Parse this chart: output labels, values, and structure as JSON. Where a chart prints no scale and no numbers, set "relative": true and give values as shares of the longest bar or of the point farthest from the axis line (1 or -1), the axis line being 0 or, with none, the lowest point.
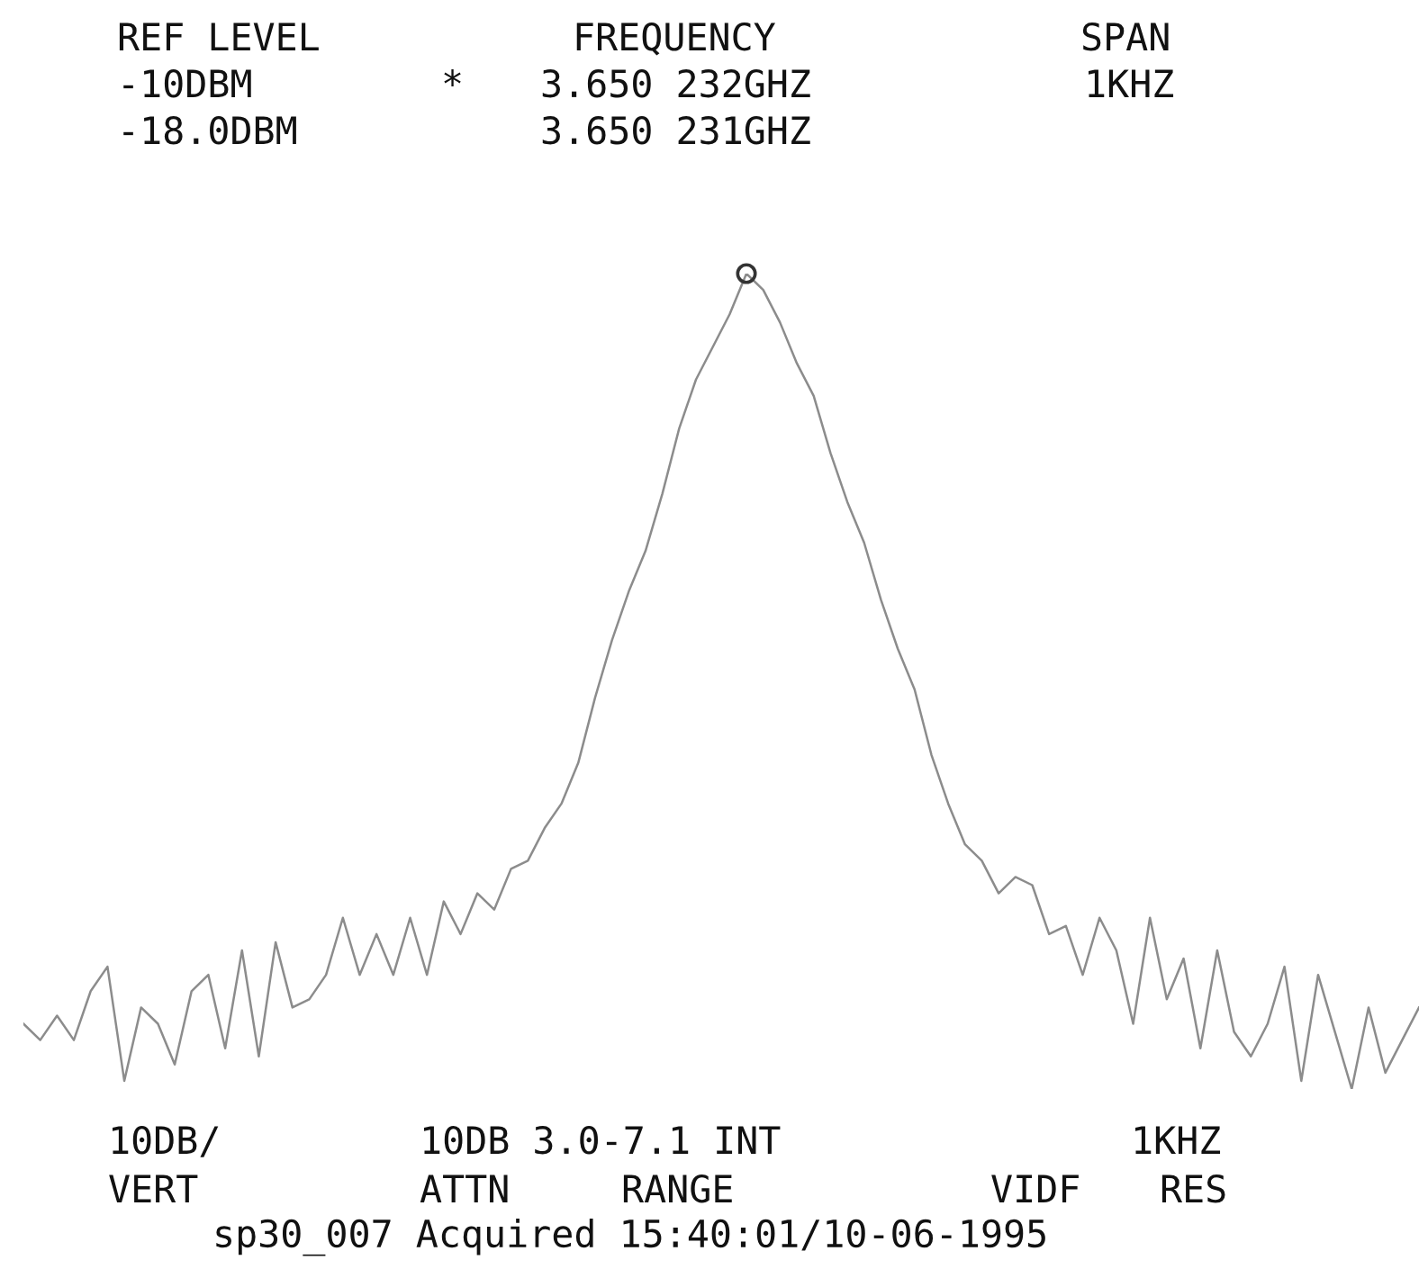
{
  "chart_data": {
    "type": "line",
    "relative": true,
    "categories": [
      null,
      null,
      null,
      null,
      null,
      null,
      null,
      null,
      null,
      null,
      null,
      null,
      null,
      null,
      null,
      null,
      null,
      null,
      null,
      null,
      null,
      null,
      null,
      null,
      null,
      null,
      null,
      null,
      null,
      null,
      null,
      null,
      null,
      null,
      null,
      null,
      null,
      null,
      null,
      null,
      null,
      null,
      null,
      null,
      null,
      null,
      null,
      null,
      null,
      null,
      null,
      null,
      null,
      null,
      null,
      null,
      null,
      null,
      null,
      null,
      null,
      null,
      null,
      null,
      null,
      null,
      null,
      null,
      null,
      null,
      null,
      null,
      null,
      null,
      null,
      null,
      null,
      null,
      null,
      null,
      null,
      null,
      null,
      null
    ],
    "series": [
      {
        "color": "#8c8c8c",
        "values": [
          0.08,
          0.06,
          0.09,
          0.06,
          0.12,
          0.15,
          0.01,
          0.1,
          0.08,
          0.03,
          0.12,
          0.14,
          0.05,
          0.17,
          0.04,
          0.18,
          0.1,
          0.11,
          0.14,
          0.21,
          0.14,
          0.19,
          0.14,
          0.21,
          0.14,
          0.23,
          0.19,
          0.24,
          0.22,
          0.27,
          0.28,
          0.32,
          0.35,
          0.4,
          0.48,
          0.55,
          0.61,
          0.66,
          0.73,
          0.81,
          0.87,
          0.91,
          0.95,
          1,
          0.98,
          0.94,
          0.89,
          0.85,
          0.78,
          0.72,
          0.67,
          0.6,
          0.54,
          0.49,
          0.41,
          0.35,
          0.3,
          0.28,
          0.24,
          0.26,
          0.25,
          0.19,
          0.2,
          0.14,
          0.21,
          0.17,
          0.08,
          0.21,
          0.11,
          0.16,
          0.05,
          0.17,
          0.07,
          0.04,
          0.08,
          0.15,
          0.01,
          0.14,
          0.07,
          0,
          0.1,
          0.02,
          0.06,
          0.1
        ]
      }
    ],
    "annotations": [
      "REF LEVEL",
      "FREQUENCY",
      "SPAN",
      "-10DBM",
      "*",
      "3.650 232GHZ",
      "1KHZ",
      "-18.0DBM",
      "3.650 231GHZ",
      "10DB/",
      "10DB 3.0-7.1 INT",
      "1KHZ",
      "VERT",
      "ATTN",
      "RANGE",
      "VIDF",
      "RES",
      "sp30_007 Acquired 15:40:01/10-06-1995"
    ]
  }
}
